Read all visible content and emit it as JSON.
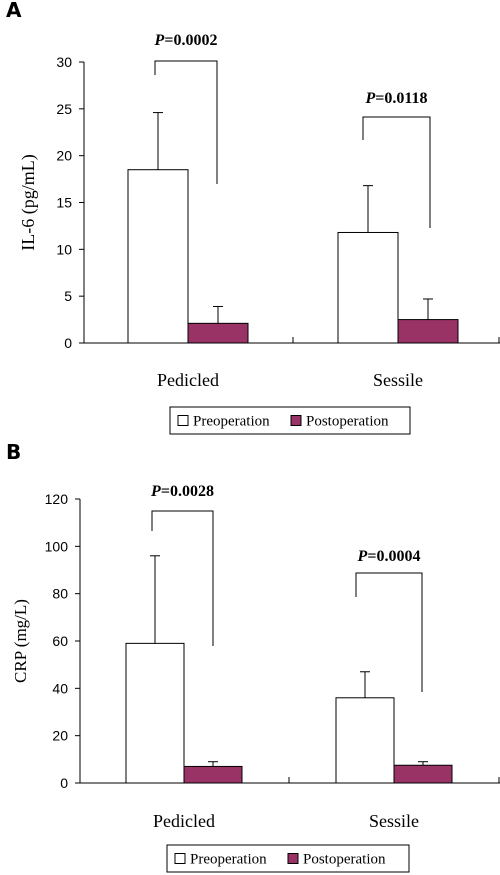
{
  "colors": {
    "pre": "#ffffff",
    "post": "#993366",
    "stroke": "#000000"
  },
  "chart_data": [
    {
      "panel": "A",
      "type": "bar",
      "categories": [
        "Pedicled",
        "Sessile"
      ],
      "ylabel": "IL-6 (pg/mL)",
      "ylim": [
        0,
        30
      ],
      "yticks": [
        0,
        5,
        10,
        15,
        20,
        25,
        30
      ],
      "series": [
        {
          "name": "Preoperation",
          "values": [
            18.5,
            11.8
          ],
          "errors": [
            6.1,
            5.0
          ]
        },
        {
          "name": "Postoperation",
          "values": [
            2.1,
            2.5
          ],
          "errors": [
            1.8,
            2.2
          ]
        }
      ],
      "annotations": [
        {
          "category": "Pedicled",
          "p_letter": "P",
          "p_value": "=0.0002"
        },
        {
          "category": "Sessile",
          "p_letter": "P",
          "p_value": "=0.0118"
        }
      ],
      "legend": "bottom"
    },
    {
      "panel": "B",
      "type": "bar",
      "categories": [
        "Pedicled",
        "Sessile"
      ],
      "ylabel": "CRP (mg/L)",
      "ylim": [
        0,
        120
      ],
      "yticks": [
        0,
        20,
        40,
        60,
        80,
        100,
        120
      ],
      "series": [
        {
          "name": "Preoperation",
          "values": [
            59,
            36
          ],
          "errors": [
            37,
            11
          ]
        },
        {
          "name": "Postoperation",
          "values": [
            7,
            7.5
          ],
          "errors": [
            2,
            1.5
          ]
        }
      ],
      "annotations": [
        {
          "category": "Pedicled",
          "p_letter": "P",
          "p_value": "=0.0028"
        },
        {
          "category": "Sessile",
          "p_letter": "P",
          "p_value": "=0.0004"
        }
      ],
      "legend": "bottom"
    }
  ]
}
